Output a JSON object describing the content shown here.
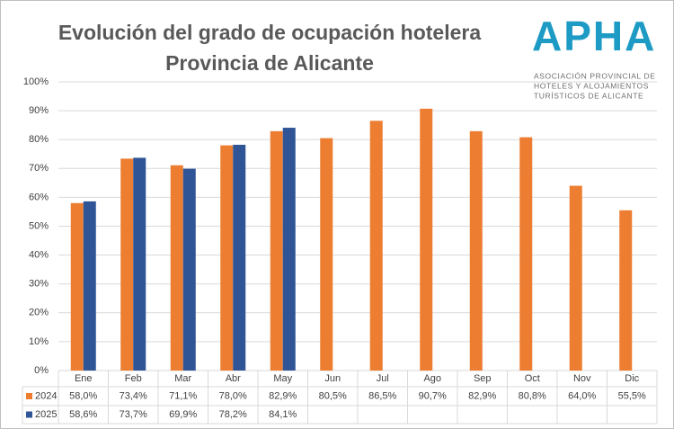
{
  "chart_data": {
    "type": "bar",
    "title": [
      "Evolución del grado de ocupación hotelera",
      "Provincia de Alicante"
    ],
    "categories": [
      "Ene",
      "Feb",
      "Mar",
      "Abr",
      "May",
      "Jun",
      "Jul",
      "Ago",
      "Sep",
      "Oct",
      "Nov",
      "Dic"
    ],
    "series": [
      {
        "name": "2024",
        "color": "#ed7d31",
        "values": [
          58.0,
          73.4,
          71.1,
          78.0,
          82.9,
          80.5,
          86.5,
          90.7,
          82.9,
          80.8,
          64.0,
          55.5
        ],
        "value_labels": [
          "58,0%",
          "73,4%",
          "71,1%",
          "78,0%",
          "82,9%",
          "80,5%",
          "86,5%",
          "90,7%",
          "82,9%",
          "80,8%",
          "64,0%",
          "55,5%"
        ]
      },
      {
        "name": "2025",
        "color": "#2f5597",
        "values": [
          58.6,
          73.7,
          69.9,
          78.2,
          84.1,
          null,
          null,
          null,
          null,
          null,
          null,
          null
        ],
        "value_labels": [
          "58,6%",
          "73,7%",
          "69,9%",
          "78,2%",
          "84,1%",
          null,
          null,
          null,
          null,
          null,
          null,
          null
        ]
      }
    ],
    "ylim": [
      0,
      100
    ],
    "yticks": [
      {
        "value": 0,
        "label": "0%"
      },
      {
        "value": 10,
        "label": "10%"
      },
      {
        "value": 20,
        "label": "20%"
      },
      {
        "value": 30,
        "label": "30%"
      },
      {
        "value": 40,
        "label": "40%"
      },
      {
        "value": 50,
        "label": "50%"
      },
      {
        "value": 60,
        "label": "60%"
      },
      {
        "value": 70,
        "label": "70%"
      },
      {
        "value": 80,
        "label": "80%"
      },
      {
        "value": 90,
        "label": "90%"
      },
      {
        "value": 100,
        "label": "100%"
      }
    ],
    "grid": true
  },
  "logo": {
    "name": "APHA",
    "lines": [
      "ASOCIACIÓN PROVINCIAL DE",
      "HOTELES Y ALOJAMIENTOS",
      "TURÍSTICOS DE ALICANTE"
    ]
  }
}
